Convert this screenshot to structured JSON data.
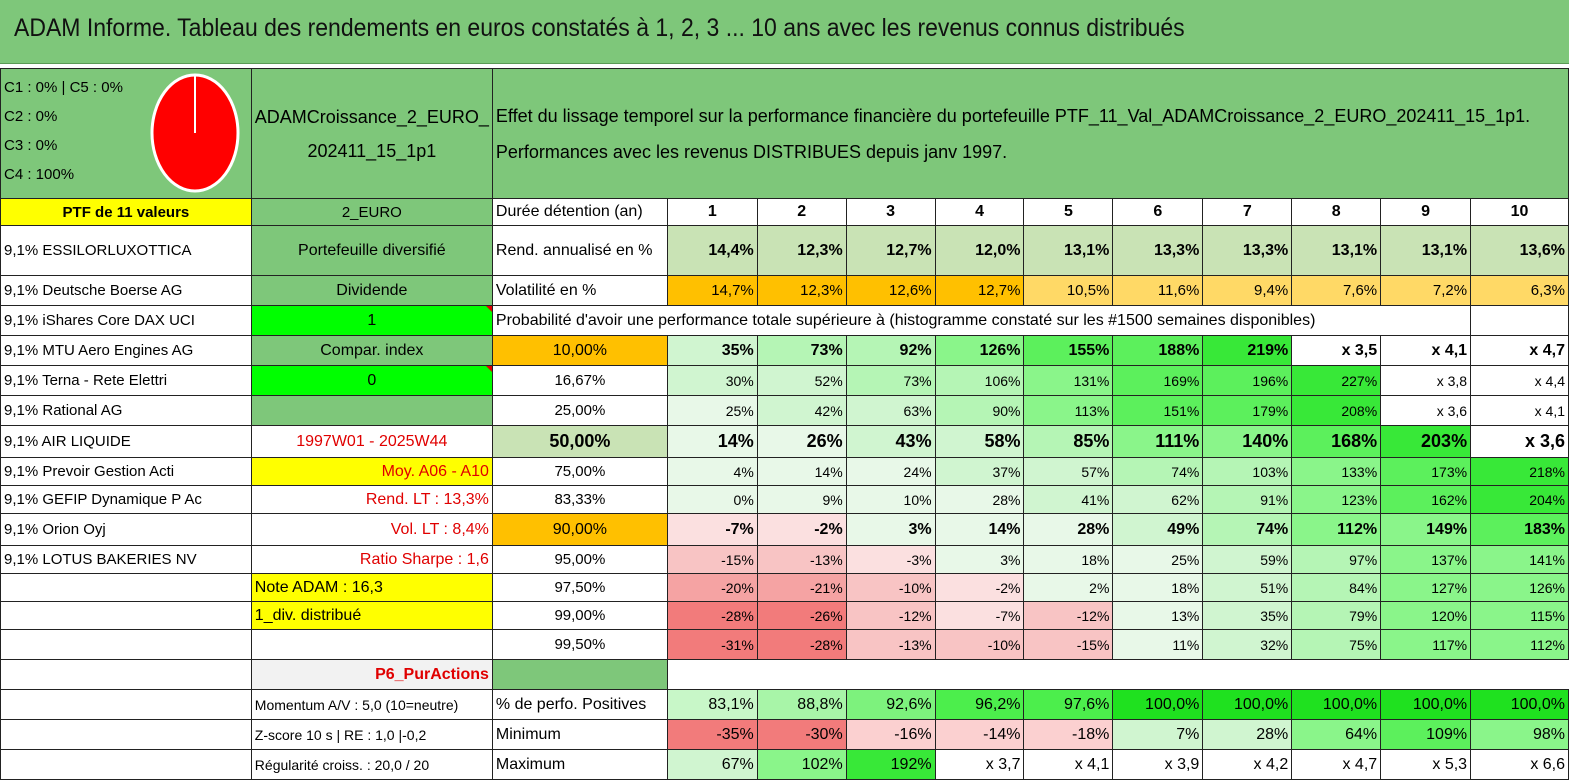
{
  "title": "ADAM Informe. Tableau des rendements en euros constatés à 1, 2, 3 ... 10 ans avec les revenus connus distribués",
  "allocation": {
    "lines": [
      "C1 : 0% | C5 : 0%",
      "C2 : 0%",
      "C3 : 0%",
      "C4 : 100%"
    ],
    "pie": {
      "slices": [
        {
          "label": "C4",
          "value": 100,
          "color": "#ff0000"
        }
      ]
    }
  },
  "portfolio": {
    "name": "ADAMCroissance_2_EURO_202411_15_1p1",
    "name_line1": "ADAMCroissance_2_EURO_",
    "name_line2": "202411_15_1p1",
    "description_line1": "Effet du lissage temporel sur la performance financière du portefeuille PTF_11_Val_ADAMCroissance_2_EURO_202411_15_1p1.",
    "description_line2": "Performances avec les revenus DISTRIBUES depuis janv 1997.",
    "count_label": "PTF de 11 valeurs",
    "currency": "2_EURO"
  },
  "holdings": [
    "9,1% ESSILORLUXOTTICA",
    "9,1% Deutsche Boerse AG",
    "9,1% iShares Core DAX UCI",
    "9,1% MTU Aero Engines AG",
    "9,1% Terna - Rete Elettri",
    "9,1% Rational AG",
    "9,1% AIR LIQUIDE",
    "9,1% Prevoir Gestion Acti",
    "9,1% GEFIP Dynamique P Ac",
    "9,1% Orion Oyj",
    "9,1% LOTUS BAKERIES NV"
  ],
  "info": {
    "diversified": "Portefeuille diversifié",
    "dividend": "Dividende",
    "dividend_value": "1",
    "compar_index": "Compar. index",
    "compar_value": "0",
    "period": "1997W01 - 2025W44",
    "moy": "Moy. A06 - A10",
    "rend_lt": "Rend. LT : 13,3%",
    "vol_lt": "Vol. LT : 8,4%",
    "sharpe": "Ratio Sharpe : 1,6",
    "note": "Note ADAM : 16,3",
    "div_distrib": "1_div. distribué",
    "p6": "P6_PurActions",
    "momentum": "Momentum A/V : 5,0 (10=neutre)",
    "zscore": "Z-score 10 s | RE : 1,0 |-0,2",
    "regularite": "Régularité croiss. : 20,0 / 20"
  },
  "table": {
    "duration_label": "Durée détention (an)",
    "years": [
      "1",
      "2",
      "3",
      "4",
      "5",
      "6",
      "7",
      "8",
      "9",
      "10"
    ],
    "rend_label": "Rend. annualisé en %",
    "rend": [
      "14,4%",
      "12,3%",
      "12,7%",
      "12,0%",
      "13,1%",
      "13,3%",
      "13,3%",
      "13,1%",
      "13,1%",
      "13,6%"
    ],
    "vol_label": "Volatilité en %",
    "vol": [
      "14,7%",
      "12,3%",
      "12,6%",
      "12,7%",
      "10,5%",
      "11,6%",
      "9,4%",
      "7,6%",
      "7,2%",
      "6,3%"
    ],
    "prob_title": "Probabilité d'avoir une performance totale supérieure à (histogramme constaté sur les #1500 semaines disponibles)",
    "prob_rows": [
      {
        "p": "10,00%",
        "vals": [
          "35%",
          "73%",
          "92%",
          "126%",
          "155%",
          "188%",
          "219%",
          "x 3,5",
          "x 4,1",
          "x 4,7"
        ]
      },
      {
        "p": "16,67%",
        "vals": [
          "30%",
          "52%",
          "73%",
          "106%",
          "131%",
          "169%",
          "196%",
          "227%",
          "x 3,8",
          "x 4,4"
        ]
      },
      {
        "p": "25,00%",
        "vals": [
          "25%",
          "42%",
          "63%",
          "90%",
          "113%",
          "151%",
          "179%",
          "208%",
          "x 3,6",
          "x 4,1"
        ]
      },
      {
        "p": "50,00%",
        "vals": [
          "14%",
          "26%",
          "43%",
          "58%",
          "85%",
          "111%",
          "140%",
          "168%",
          "203%",
          "x 3,6"
        ]
      },
      {
        "p": "75,00%",
        "vals": [
          "4%",
          "14%",
          "24%",
          "37%",
          "57%",
          "74%",
          "103%",
          "133%",
          "173%",
          "218%"
        ]
      },
      {
        "p": "83,33%",
        "vals": [
          "0%",
          "9%",
          "10%",
          "28%",
          "41%",
          "62%",
          "91%",
          "123%",
          "162%",
          "204%"
        ]
      },
      {
        "p": "90,00%",
        "vals": [
          "-7%",
          "-2%",
          "3%",
          "14%",
          "28%",
          "49%",
          "74%",
          "112%",
          "149%",
          "183%"
        ]
      },
      {
        "p": "95,00%",
        "vals": [
          "-15%",
          "-13%",
          "-3%",
          "3%",
          "18%",
          "25%",
          "59%",
          "97%",
          "137%",
          "141%"
        ]
      },
      {
        "p": "97,50%",
        "vals": [
          "-20%",
          "-21%",
          "-10%",
          "-2%",
          "2%",
          "18%",
          "51%",
          "84%",
          "127%",
          "126%"
        ]
      },
      {
        "p": "99,00%",
        "vals": [
          "-28%",
          "-26%",
          "-12%",
          "-7%",
          "-12%",
          "13%",
          "35%",
          "79%",
          "120%",
          "115%"
        ]
      },
      {
        "p": "99,50%",
        "vals": [
          "-31%",
          "-28%",
          "-13%",
          "-10%",
          "-15%",
          "11%",
          "32%",
          "75%",
          "117%",
          "112%"
        ]
      }
    ],
    "pos_label": "% de perfo. Positives",
    "pos": [
      "83,1%",
      "88,8%",
      "92,6%",
      "96,2%",
      "97,6%",
      "100,0%",
      "100,0%",
      "100,0%",
      "100,0%",
      "100,0%"
    ],
    "min_label": "Minimum",
    "min": [
      "-35%",
      "-30%",
      "-16%",
      "-14%",
      "-18%",
      "7%",
      "28%",
      "64%",
      "109%",
      "98%"
    ],
    "max_label": "Maximum",
    "max": [
      "67%",
      "102%",
      "192%",
      "x 3,7",
      "x 4,1",
      "x 3,9",
      "x 4,2",
      "x 4,7",
      "x 5,3",
      "x 6,6"
    ]
  },
  "colors": {
    "header_green": "#7ec77a",
    "yellow": "#ffff00",
    "bright_green": "#00ff00",
    "orange": "#ffc000",
    "red_text": "#e00000"
  }
}
